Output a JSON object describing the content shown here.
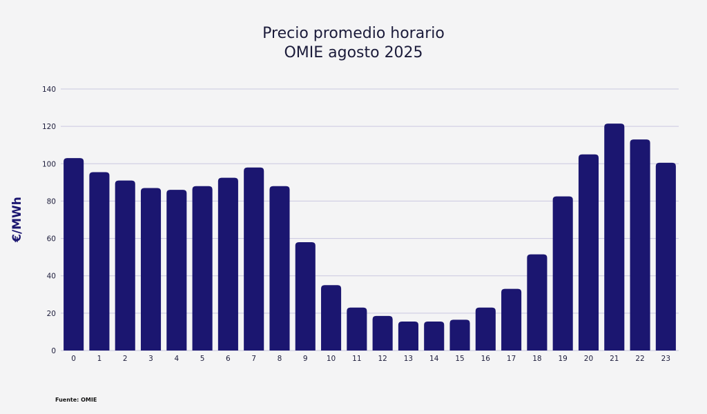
{
  "chart_data": {
    "type": "bar",
    "title_lines": [
      "Precio promedio horario",
      "OMIE agosto 2025"
    ],
    "xlabel": "",
    "ylabel": "€/MWh",
    "categories": [
      "0",
      "1",
      "2",
      "3",
      "4",
      "5",
      "6",
      "7",
      "8",
      "9",
      "10",
      "11",
      "12",
      "13",
      "14",
      "15",
      "16",
      "17",
      "18",
      "19",
      "20",
      "21",
      "22",
      "23"
    ],
    "values": [
      103,
      95.5,
      91,
      87,
      86,
      88,
      92.5,
      98,
      88,
      58,
      35,
      23,
      18.5,
      15.5,
      15.5,
      16.5,
      23,
      33,
      51.5,
      82.5,
      105,
      121.5,
      113,
      100.5
    ],
    "ylim": [
      0,
      140
    ],
    "yticks": [
      0,
      20,
      40,
      60,
      80,
      100,
      120,
      140
    ],
    "grid": true,
    "legend": "none",
    "source": "Fuente: OMIE",
    "colors": {
      "bar": "#1b1670",
      "grid": "#c9c7e0",
      "text": "#1b1b3a",
      "background": "#f4f4f5"
    }
  }
}
